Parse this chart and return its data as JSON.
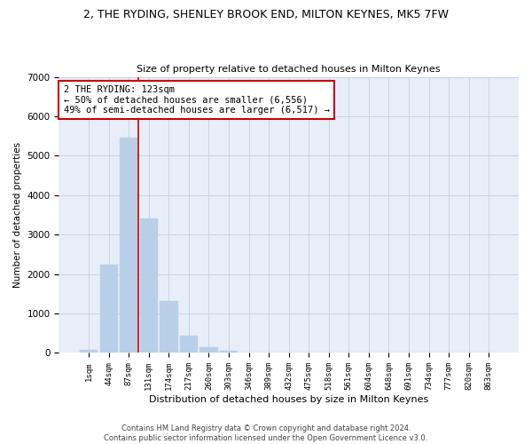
{
  "title": "2, THE RYDING, SHENLEY BROOK END, MILTON KEYNES, MK5 7FW",
  "subtitle": "Size of property relative to detached houses in Milton Keynes",
  "xlabel": "Distribution of detached houses by size in Milton Keynes",
  "ylabel": "Number of detached properties",
  "footer_line1": "Contains HM Land Registry data © Crown copyright and database right 2024.",
  "footer_line2": "Contains public sector information licensed under the Open Government Licence v3.0.",
  "bar_labels": [
    "1sqm",
    "44sqm",
    "87sqm",
    "131sqm",
    "174sqm",
    "217sqm",
    "260sqm",
    "303sqm",
    "346sqm",
    "389sqm",
    "432sqm",
    "475sqm",
    "518sqm",
    "561sqm",
    "604sqm",
    "648sqm",
    "691sqm",
    "734sqm",
    "777sqm",
    "820sqm",
    "863sqm"
  ],
  "bar_values": [
    80,
    2250,
    5450,
    3400,
    1320,
    430,
    155,
    65,
    0,
    0,
    0,
    0,
    0,
    0,
    0,
    0,
    0,
    0,
    0,
    0,
    0
  ],
  "bar_color": "#b8cfe8",
  "bar_edge_color": "#b8cfe8",
  "grid_color": "#c8d4e8",
  "bg_color": "#e8eef8",
  "vline_color": "#cc0000",
  "vline_pos": 2.48,
  "annotation_text": "2 THE RYDING: 123sqm\n← 50% of detached houses are smaller (6,556)\n49% of semi-detached houses are larger (6,517) →",
  "annotation_box_color": "#ffffff",
  "annotation_border_color": "#cc0000",
  "ylim": [
    0,
    7000
  ],
  "yticks": [
    0,
    1000,
    2000,
    3000,
    4000,
    5000,
    6000,
    7000
  ]
}
